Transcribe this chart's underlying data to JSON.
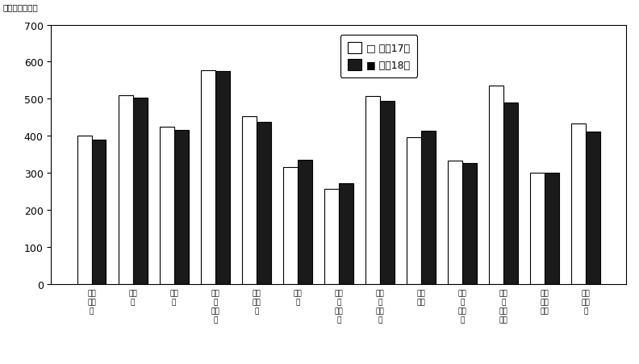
{
  "categories": [
    "調査\n産業\n計",
    "建設\n業",
    "製造\n業",
    "電気\n・\nガス\n業",
    "情報\n通信\n業",
    "運輸\n業",
    "卵売\n・\n小売\n業",
    "金融\n・\n保険\n業",
    "不動\n産業",
    "医療\n・\n福祉\n業",
    "教育\n・\n学習\n支援",
    "複合\nサー\nビス",
    "サー\nビス\n業"
  ],
  "series1_label": "平成17年",
  "series2_label": "平成18年",
  "series1_values": [
    400,
    510,
    425,
    577,
    452,
    315,
    256,
    508,
    396,
    332,
    535,
    301,
    433
  ],
  "series2_values": [
    390,
    503,
    415,
    575,
    437,
    336,
    271,
    494,
    413,
    327,
    490,
    301,
    412
  ],
  "ylim": [
    0,
    700
  ],
  "yticks": [
    0,
    100,
    200,
    300,
    400,
    500,
    600,
    700
  ],
  "unit_label": "（単位：千円）",
  "bar_color1": "#ffffff",
  "bar_color2": "#1a1a1a",
  "bar_edgecolor": "#000000",
  "background_color": "#ffffff",
  "figsize": [
    7.92,
    4.52
  ],
  "dpi": 100
}
